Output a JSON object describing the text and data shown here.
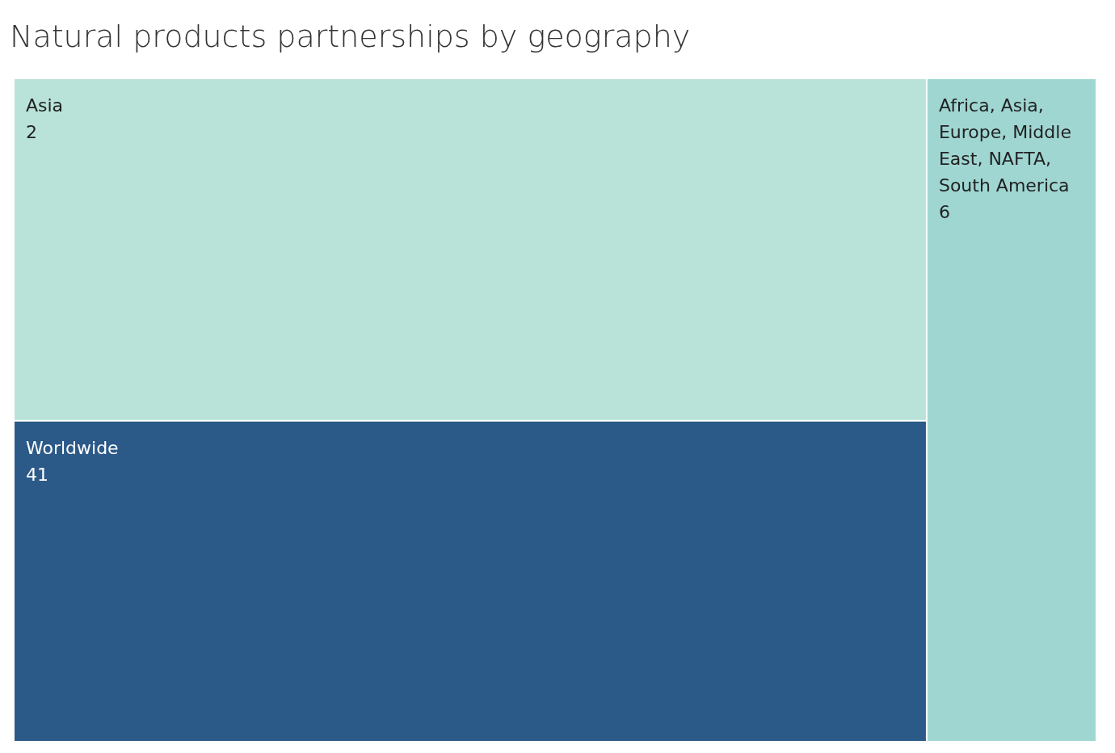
{
  "chart_data": {
    "type": "other",
    "title": "Natural products partnerships by geography",
    "categories": [
      "Asia",
      "Worldwide",
      "Africa, Asia, Europe, Middle East, NAFTA, South America"
    ],
    "values": [
      2,
      41,
      6
    ],
    "colors": [
      "#b9e3d9",
      "#2b5988",
      "#9fd6d2"
    ],
    "data_labels": true
  }
}
